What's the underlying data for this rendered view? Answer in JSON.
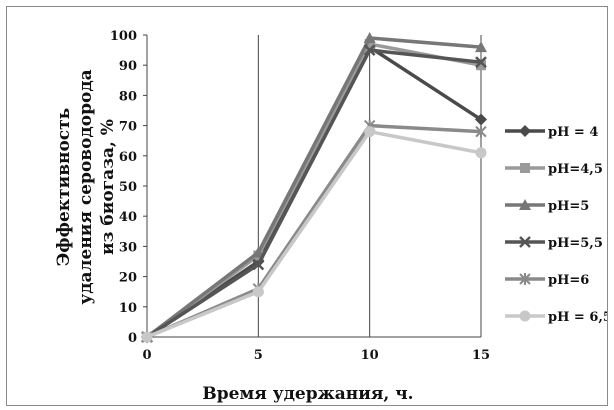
{
  "chart_data": {
    "type": "line",
    "title": "",
    "xlabel": "Время удержания, ч.",
    "ylabel_lines": [
      "Эффективность",
      "удаления  сероводорода",
      "из биогаза, %"
    ],
    "x": [
      0,
      5,
      10,
      15
    ],
    "x_ticks": [
      "0",
      "5",
      "10",
      "15"
    ],
    "y_ticks": [
      "0",
      "10",
      "20",
      "30",
      "40",
      "50",
      "60",
      "70",
      "80",
      "90",
      "100"
    ],
    "ylim": [
      0,
      100
    ],
    "grid": "vertical",
    "legend_position": "right",
    "series": [
      {
        "name": "pH = 4",
        "values": [
          0,
          25,
          96,
          72
        ],
        "color": "#4a4a4a",
        "marker": "diamond"
      },
      {
        "name": "pH=4,5",
        "values": [
          0,
          27,
          97,
          90
        ],
        "color": "#9a9a9a",
        "marker": "square"
      },
      {
        "name": "pH=5",
        "values": [
          0,
          28,
          99,
          96
        ],
        "color": "#777777",
        "marker": "triangle"
      },
      {
        "name": "pH=5,5",
        "values": [
          0,
          24,
          95,
          91
        ],
        "color": "#555555",
        "marker": "x"
      },
      {
        "name": "pH=6",
        "values": [
          0,
          16,
          70,
          68
        ],
        "color": "#8a8a8a",
        "marker": "star"
      },
      {
        "name": "pH = 6,5",
        "values": [
          0,
          15,
          68,
          61
        ],
        "color": "#c8c8c8",
        "marker": "circle"
      }
    ]
  }
}
